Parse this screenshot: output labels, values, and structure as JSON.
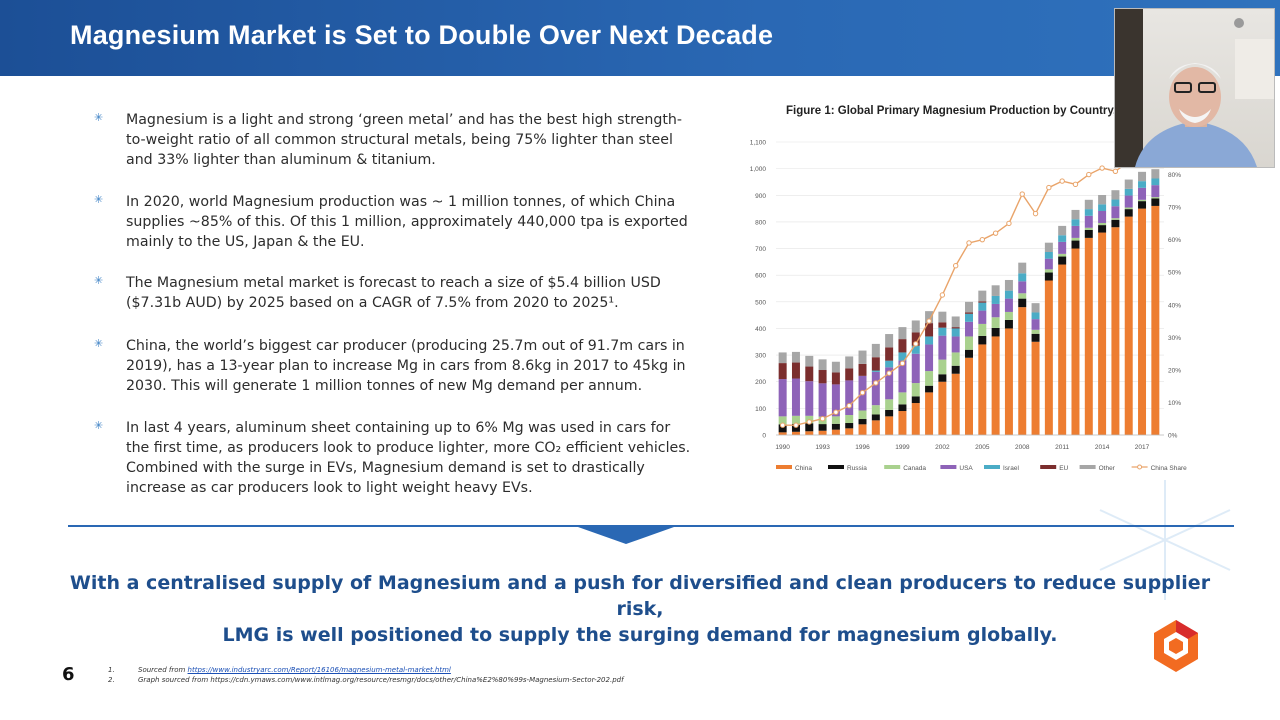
{
  "header": {
    "title": "Magnesium Market is Set to Double Over Next Decade"
  },
  "bullets": [
    "Magnesium is a light and strong ‘green metal’ and has the best high strength-to-weight ratio of all common structural metals, being 75% lighter than steel and 33% lighter than aluminum & titanium.",
    "In 2020, world Magnesium production was ~ 1 million tonnes, of which China supplies ~85% of this. Of this 1 million, approximately 440,000 tpa is exported mainly to the US, Japan & the EU.",
    "The Magnesium metal market is forecast to reach a size of $5.4 billion USD ($7.31b AUD) by 2025 based on a CAGR of 7.5% from 2020 to 2025¹.",
    "China, the world’s biggest car producer (producing 25.7m out of 91.7m cars in 2019), has a 13-year plan to increase Mg in cars from 8.6kg in 2017 to 45kg in 2030. This will generate 1 million tonnes of new Mg demand per annum.",
    "In last 4 years, aluminum sheet containing up to 6% Mg was used in cars for the first time, as producers look to produce lighter, more CO₂ efficient vehicles. Combined with the surge in EVs, Magnesium demand is set to drastically increase as car producers look to light weight heavy EVs."
  ],
  "chart_data": {
    "type": "bar",
    "title": "Figure 1: Global Primary Magnesium Production by Country, 199",
    "categories": [
      "1990",
      "1991",
      "1992",
      "1993",
      "1994",
      "1995",
      "1996",
      "1997",
      "1998",
      "1999",
      "2000",
      "2001",
      "2002",
      "2003",
      "2004",
      "2005",
      "2006",
      "2007",
      "2008",
      "2009",
      "2010",
      "2011",
      "2012",
      "2013",
      "2014",
      "2015",
      "2016",
      "2017",
      "2018"
    ],
    "x_tick_labels": [
      "1990",
      "1993",
      "1996",
      "1999",
      "2002",
      "2005",
      "2008",
      "2011",
      "2014",
      "2017"
    ],
    "y_tick_labels": [
      "0",
      "100",
      "200",
      "300",
      "400",
      "500",
      "600",
      "700",
      "800",
      "900",
      "1,000",
      "1,100"
    ],
    "y2_tick_labels": [
      "0%",
      "10%",
      "20%",
      "30%",
      "40%",
      "50%",
      "60%",
      "70%",
      "80%",
      "90%"
    ],
    "ylim": [
      0,
      1100
    ],
    "y2lim": [
      0,
      90
    ],
    "stacked": true,
    "series": [
      {
        "name": "China",
        "color": "#ed7d31",
        "values": [
          10,
          12,
          14,
          16,
          20,
          25,
          40,
          55,
          70,
          90,
          120,
          160,
          200,
          230,
          290,
          340,
          370,
          400,
          480,
          350,
          580,
          640,
          700,
          740,
          760,
          780,
          820,
          850,
          860
        ]
      },
      {
        "name": "Russia",
        "color": "#111111",
        "values": [
          30,
          30,
          30,
          25,
          22,
          20,
          20,
          22,
          24,
          25,
          25,
          25,
          28,
          30,
          30,
          32,
          32,
          32,
          32,
          30,
          30,
          30,
          30,
          30,
          28,
          28,
          28,
          28,
          28
        ]
      },
      {
        "name": "Canada",
        "color": "#a9d18e",
        "values": [
          30,
          30,
          28,
          28,
          28,
          30,
          32,
          35,
          40,
          45,
          50,
          55,
          55,
          50,
          50,
          45,
          40,
          30,
          20,
          15,
          12,
          10,
          10,
          8,
          8,
          6,
          6,
          5,
          5
        ]
      },
      {
        "name": "USA",
        "color": "#8e63b8",
        "values": [
          140,
          140,
          130,
          125,
          120,
          130,
          130,
          125,
          120,
          120,
          110,
          100,
          90,
          60,
          55,
          50,
          50,
          50,
          45,
          40,
          40,
          45,
          45,
          45,
          45,
          45,
          45,
          45,
          45
        ]
      },
      {
        "name": "Israel",
        "color": "#4bacc6",
        "values": [
          0,
          0,
          0,
          0,
          0,
          0,
          0,
          5,
          25,
          30,
          30,
          30,
          30,
          30,
          30,
          30,
          30,
          30,
          30,
          25,
          25,
          25,
          25,
          25,
          25,
          25,
          25,
          25,
          25
        ]
      },
      {
        "name": "EU",
        "color": "#7b2e2e",
        "values": [
          60,
          60,
          55,
          50,
          45,
          45,
          45,
          50,
          50,
          50,
          50,
          50,
          20,
          5,
          5,
          5,
          0,
          0,
          0,
          0,
          0,
          0,
          0,
          0,
          0,
          0,
          0,
          0,
          0
        ]
      },
      {
        "name": "Other",
        "color": "#a6a6a6",
        "values": [
          40,
          40,
          40,
          40,
          40,
          45,
          50,
          50,
          50,
          45,
          45,
          45,
          40,
          40,
          40,
          40,
          40,
          40,
          40,
          35,
          35,
          35,
          35,
          35,
          35,
          35,
          35,
          35,
          35
        ]
      }
    ],
    "line_series": {
      "name": "China Share",
      "color": "#e9a46a",
      "axis": "right",
      "values": [
        3,
        3,
        4,
        5,
        7,
        9,
        13,
        16,
        19,
        22,
        28,
        35,
        43,
        52,
        59,
        60,
        62,
        65,
        74,
        68,
        76,
        78,
        77,
        80,
        82,
        81,
        84,
        85,
        86
      ]
    },
    "legend": {
      "position": "bottom",
      "items": [
        "China",
        "Russia",
        "Canada",
        "USA",
        "Israel",
        "EU",
        "Other",
        "China Share"
      ]
    }
  },
  "tagline": {
    "line1": "With a centralised supply of Magnesium and a push for diversified and clean producers to reduce supplier risk,",
    "line2": "LMG is well positioned to supply the surging demand for magnesium globally."
  },
  "page_number": "6",
  "footnotes": [
    {
      "num": "1.",
      "prefix": "Sourced from ",
      "link": "https://www.industryarc.com/Report/16106/magnesium-metal-market.html"
    },
    {
      "num": "2.",
      "prefix": "Graph sourced from https://cdn.ymaws.com/www.intlmag.org/resource/resmgr/docs/other/China%E2%80%99s-Magnesium-Sector-202.pdf",
      "link": ""
    }
  ],
  "icons": {
    "bullet": "star-bullet-icon",
    "logo": "lmg-hexagon-logo"
  },
  "colors": {
    "header": "#1c4f96",
    "accent": "#2a68b4",
    "tagline": "#1e4e8c",
    "logo_orange": "#f26b21",
    "logo_red": "#d82c2c"
  }
}
